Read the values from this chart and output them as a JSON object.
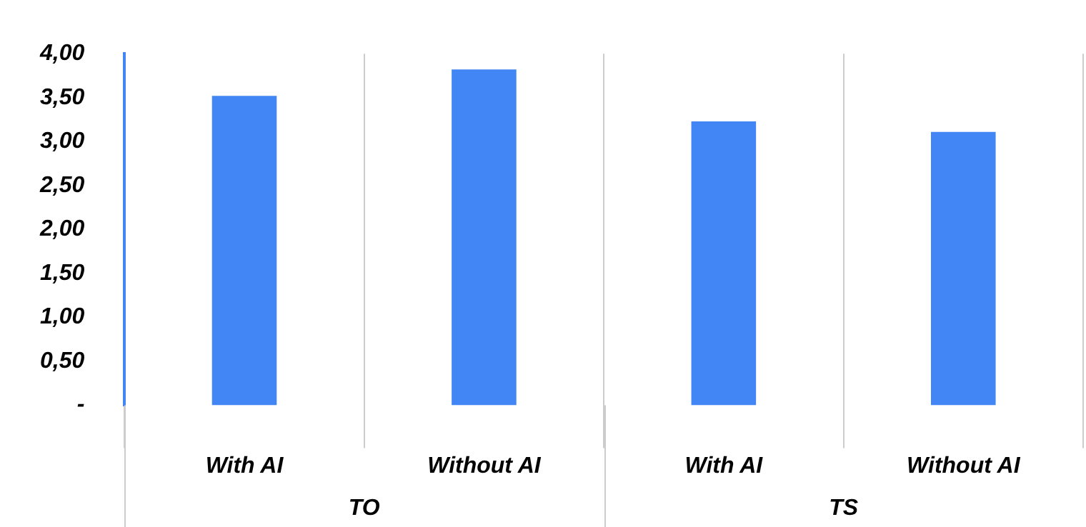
{
  "chart_data": {
    "type": "bar",
    "categories": [
      "With AI",
      "Without AI",
      "With AI",
      "Without AI"
    ],
    "values": [
      3.52,
      3.82,
      3.23,
      3.11
    ],
    "color": "#4285f4",
    "ylim": [
      0,
      4
    ],
    "yticks": [
      {
        "value": 0,
        "label": "-"
      },
      {
        "value": 0.5,
        "label": "0,50"
      },
      {
        "value": 1,
        "label": "1,00"
      },
      {
        "value": 1.5,
        "label": "1,50"
      },
      {
        "value": 2,
        "label": "2,00"
      },
      {
        "value": 2.5,
        "label": "2,50"
      },
      {
        "value": 3,
        "label": "3,00"
      },
      {
        "value": 3.5,
        "label": "3,50"
      },
      {
        "value": 4,
        "label": "4,00"
      }
    ],
    "grid": "x",
    "annotations": [
      "TO",
      "TS"
    ]
  }
}
